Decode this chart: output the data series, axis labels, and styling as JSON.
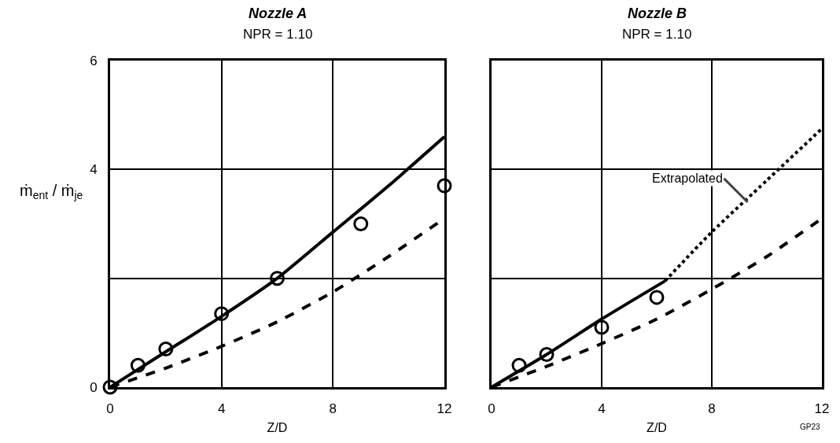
{
  "chart_data": [
    {
      "type": "scatter",
      "title": "Nozzle A",
      "subtitle": "NPR = 1.10",
      "xlabel": "Z/D",
      "ylabel": "ṁ$_{ent}$ / ṁ$_{je}$",
      "xlim": [
        0,
        12
      ],
      "ylim": [
        0,
        6
      ],
      "xticks": [
        0,
        4,
        8,
        12
      ],
      "yticks": [
        0,
        {
          "value": 2,
          "label": null
        },
        4,
        6
      ],
      "grid": true,
      "series": [
        {
          "type": "line",
          "color": "#000000",
          "line_style": "solid",
          "marker": "none",
          "x": [
            0,
            2,
            4,
            6,
            8,
            10,
            12
          ],
          "values": [
            0,
            0.65,
            1.3,
            2.0,
            2.85,
            3.7,
            4.6
          ]
        },
        {
          "type": "line",
          "color": "#000000",
          "line_style": "dashed",
          "marker": "none",
          "x": [
            0,
            2,
            4,
            6,
            8,
            10,
            12
          ],
          "values": [
            0,
            0.35,
            0.75,
            1.2,
            1.75,
            2.4,
            3.1
          ]
        },
        {
          "color": "#000000",
          "marker": "circle",
          "x": [
            0,
            1,
            2,
            4,
            6,
            9,
            12
          ],
          "values": [
            0,
            0.4,
            0.7,
            1.35,
            2.0,
            3.0,
            3.7
          ]
        }
      ]
    },
    {
      "type": "scatter",
      "title": "Nozzle B",
      "subtitle": "NPR = 1.10",
      "xlabel": "Z/D",
      "xlim": [
        0,
        12
      ],
      "ylim": [
        0,
        6
      ],
      "xticks": [
        0,
        4,
        8,
        12
      ],
      "yticks": [
        0,
        2,
        4,
        6
      ],
      "grid": true,
      "tick_labels": "x",
      "annotations": [
        {
          "text": "Extrapolated",
          "x": 9.3,
          "y": 3.4
        },
        "GP23"
      ],
      "series": [
        {
          "type": "line",
          "color": "#000000",
          "line_style": "solid",
          "marker": "none",
          "x": [
            0,
            2,
            4,
            6.3
          ],
          "values": [
            0,
            0.6,
            1.25,
            1.95
          ]
        },
        {
          "type": "line",
          "color": "#000000",
          "line_style": "dotted",
          "marker": "none",
          "x": [
            6.3,
            8,
            10,
            12
          ],
          "values": [
            1.95,
            2.85,
            3.8,
            4.75
          ]
        },
        {
          "type": "line",
          "color": "#000000",
          "line_style": "dashed",
          "marker": "none",
          "x": [
            0,
            2,
            4,
            6,
            8,
            10,
            12
          ],
          "values": [
            0,
            0.38,
            0.8,
            1.25,
            1.8,
            2.4,
            3.1
          ]
        },
        {
          "color": "#000000",
          "marker": "circle",
          "x": [
            1,
            2,
            4,
            6
          ],
          "values": [
            0.4,
            0.6,
            1.1,
            1.65
          ]
        }
      ]
    }
  ]
}
